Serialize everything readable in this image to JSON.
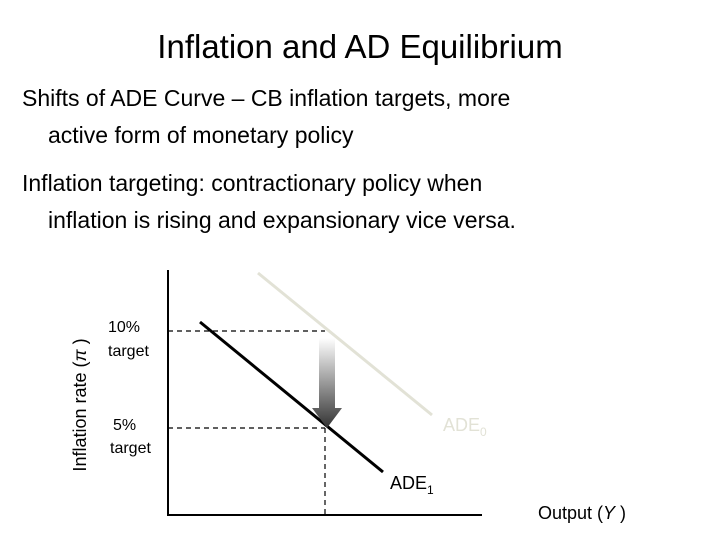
{
  "title": "Inflation and AD Equilibrium",
  "bullets": [
    {
      "lines": [
        "Shifts of ADE Curve – CB inflation targets, more",
        "active form of monetary policy"
      ]
    },
    {
      "lines": [
        "Inflation targeting: contractionary policy when",
        "inflation is rising and expansionary vice versa."
      ]
    }
  ],
  "diagram": {
    "y_axis_label": {
      "prefix": "Inflation rate (",
      "symbol": "π",
      "suffix": " )"
    },
    "x_axis_label": {
      "prefix": "Output (",
      "symbol": "Y",
      "suffix": " )"
    },
    "targets": [
      {
        "lines": [
          "10%",
          "target"
        ]
      },
      {
        "lines": [
          "5%",
          "target"
        ]
      }
    ],
    "curves": [
      {
        "text": "ADE",
        "subscript": "0"
      },
      {
        "text": "ADE",
        "subscript": "1"
      }
    ]
  }
}
